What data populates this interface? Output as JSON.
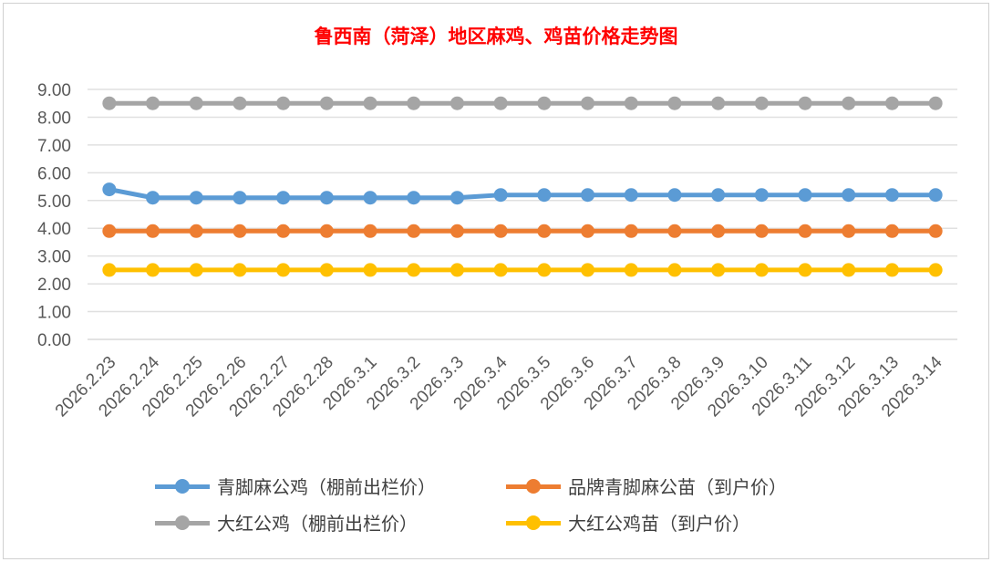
{
  "chart_data": {
    "type": "line",
    "title": "鲁西南（菏泽）地区麻鸡、鸡苗价格走势图",
    "categories": [
      "2026.2.23",
      "2026.2.24",
      "2026.2.25",
      "2026.2.26",
      "2026.2.27",
      "2026.2.28",
      "2026.3.1",
      "2026.3.2",
      "2026.3.3",
      "2026.3.4",
      "2026.3.5",
      "2026.3.6",
      "2026.3.7",
      "2026.3.8",
      "2026.3.9",
      "2026.3.10",
      "2026.3.11",
      "2026.3.12",
      "2026.3.13",
      "2026.3.14"
    ],
    "yticks": [
      "0.00",
      "1.00",
      "2.00",
      "3.00",
      "4.00",
      "5.00",
      "6.00",
      "7.00",
      "8.00",
      "9.00"
    ],
    "ylim": [
      0,
      9
    ],
    "grid": true,
    "legend_position": "bottom",
    "series": [
      {
        "name": "青脚麻公鸡（棚前出栏价）",
        "color": "#5b9bd5",
        "values": [
          5.4,
          5.1,
          5.1,
          5.1,
          5.1,
          5.1,
          5.1,
          5.1,
          5.1,
          5.2,
          5.2,
          5.2,
          5.2,
          5.2,
          5.2,
          5.2,
          5.2,
          5.2,
          5.2,
          5.2
        ]
      },
      {
        "name": "品牌青脚麻公苗（到户价）",
        "color": "#ed7d31",
        "values": [
          3.9,
          3.9,
          3.9,
          3.9,
          3.9,
          3.9,
          3.9,
          3.9,
          3.9,
          3.9,
          3.9,
          3.9,
          3.9,
          3.9,
          3.9,
          3.9,
          3.9,
          3.9,
          3.9,
          3.9
        ]
      },
      {
        "name": "大红公鸡（棚前出栏价）",
        "color": "#a5a5a5",
        "values": [
          8.5,
          8.5,
          8.5,
          8.5,
          8.5,
          8.5,
          8.5,
          8.5,
          8.5,
          8.5,
          8.5,
          8.5,
          8.5,
          8.5,
          8.5,
          8.5,
          8.5,
          8.5,
          8.5,
          8.5
        ]
      },
      {
        "name": "大红公鸡苗（到户价）",
        "color": "#ffc000",
        "values": [
          2.5,
          2.5,
          2.5,
          2.5,
          2.5,
          2.5,
          2.5,
          2.5,
          2.5,
          2.5,
          2.5,
          2.5,
          2.5,
          2.5,
          2.5,
          2.5,
          2.5,
          2.5,
          2.5,
          2.5
        ]
      }
    ]
  }
}
